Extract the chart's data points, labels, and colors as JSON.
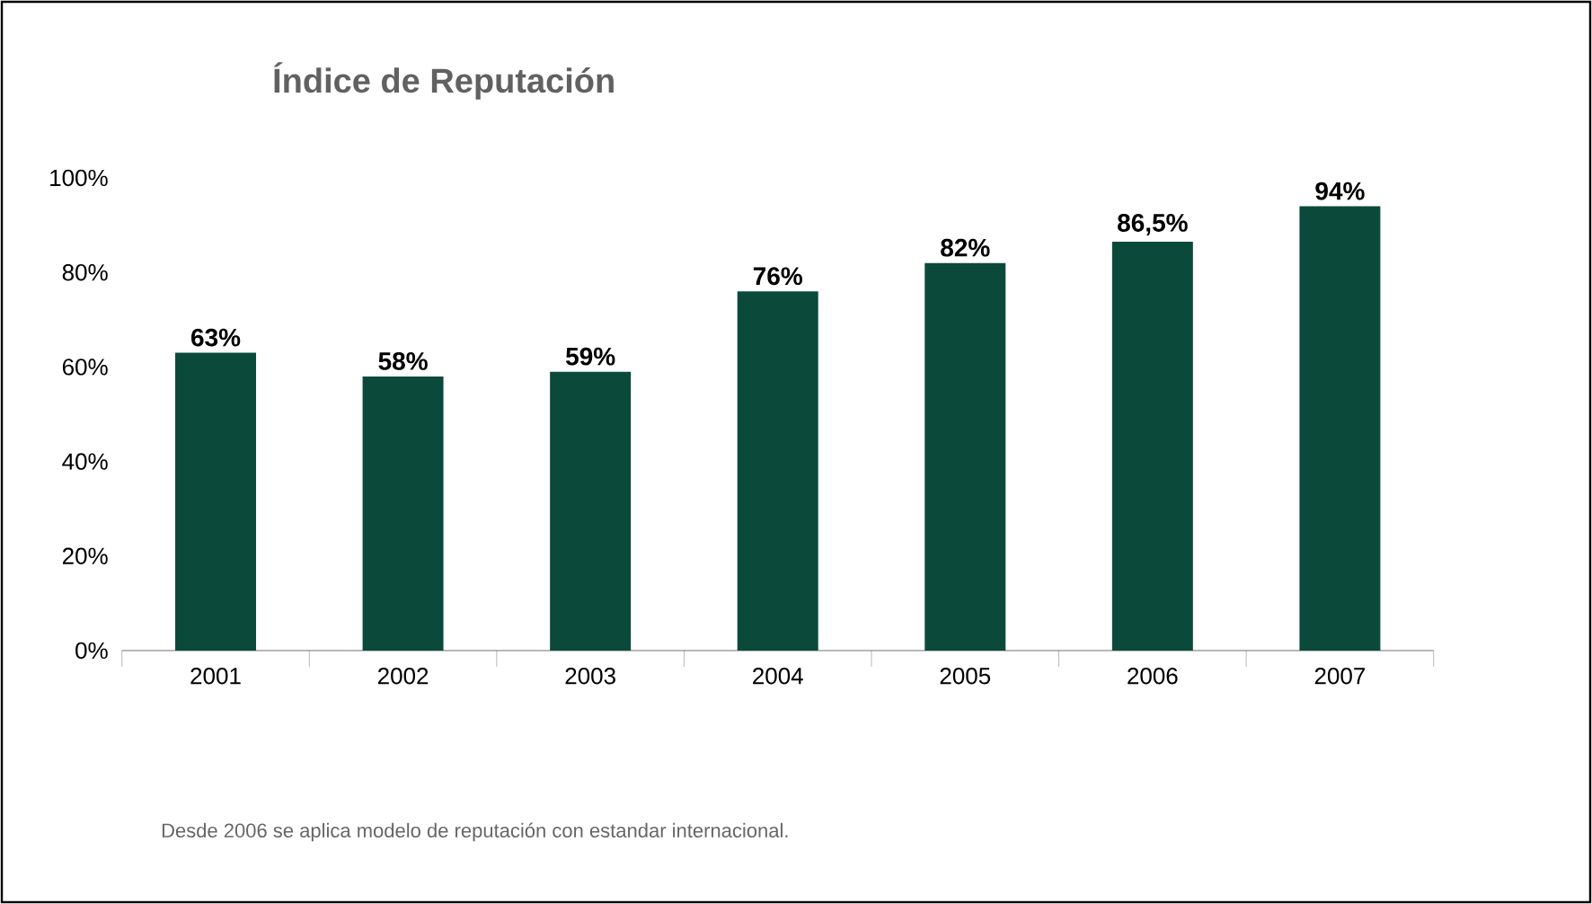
{
  "chart_data": {
    "type": "bar",
    "title": "Índice de Reputación",
    "categories": [
      "2001",
      "2002",
      "2003",
      "2004",
      "2005",
      "2006",
      "2007"
    ],
    "values": [
      63,
      58,
      59,
      76,
      82,
      86.5,
      94
    ],
    "value_labels": [
      "63%",
      "58%",
      "59%",
      "76%",
      "82%",
      "86,5%",
      "94%"
    ],
    "color": "#0b4a3b",
    "ylim": [
      0,
      100
    ],
    "yticks": [
      {
        "value": 0,
        "label": "0%"
      },
      {
        "value": 20,
        "label": "20%"
      },
      {
        "value": 40,
        "label": "40%"
      },
      {
        "value": 60,
        "label": "60%"
      },
      {
        "value": 80,
        "label": "80%"
      },
      {
        "value": 100,
        "label": "100%"
      }
    ],
    "annotations": [
      "Desde 2006 se aplica modelo de reputación con estandar internacional."
    ]
  }
}
